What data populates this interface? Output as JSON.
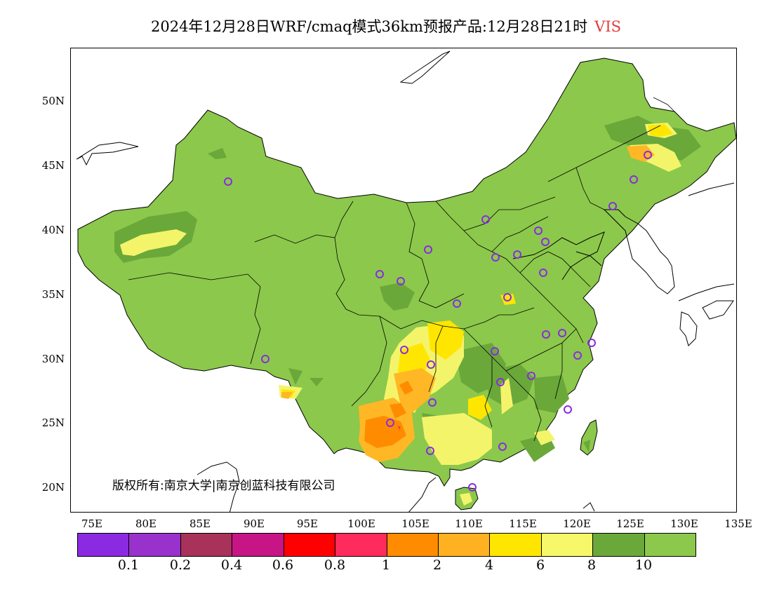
{
  "title": {
    "main": "2024年12月28日WRF/cmaq模式36km预报产品:12月28日21时",
    "variable": "VIS"
  },
  "map": {
    "lat_labels": [
      "50N",
      "45N",
      "40N",
      "35N",
      "30N",
      "25N",
      "20N"
    ],
    "lon_labels": [
      "75E",
      "80E",
      "85E",
      "90E",
      "95E",
      "100E",
      "105E",
      "110E",
      "115E",
      "120E",
      "125E",
      "130E",
      "135E"
    ],
    "copyright": "版权所有:南京大学|南京创蓝科技有限公司",
    "colors": {
      "ocean": "#ffffff",
      "land_base": "#8cc84b",
      "dark_green": "#6aa83a",
      "light_yellow": "#f4f46a",
      "yellow": "#ffe600",
      "light_orange": "#ffb726",
      "orange": "#ff8c00",
      "red": "#ff3050",
      "station": "#8a2be2",
      "border": "#000000"
    }
  },
  "legend": {
    "colors": [
      "#8a2be2",
      "#9932cc",
      "#a8325a",
      "#c71585",
      "#ff0000",
      "#ff2b5c",
      "#ff8c00",
      "#ffb121",
      "#ffe600",
      "#f6f86a",
      "#6aa83a",
      "#8cc84b"
    ],
    "labels": [
      "0.1",
      "0.2",
      "0.4",
      "0.6",
      "0.8",
      "1",
      "2",
      "4",
      "6",
      "8",
      "10"
    ]
  }
}
